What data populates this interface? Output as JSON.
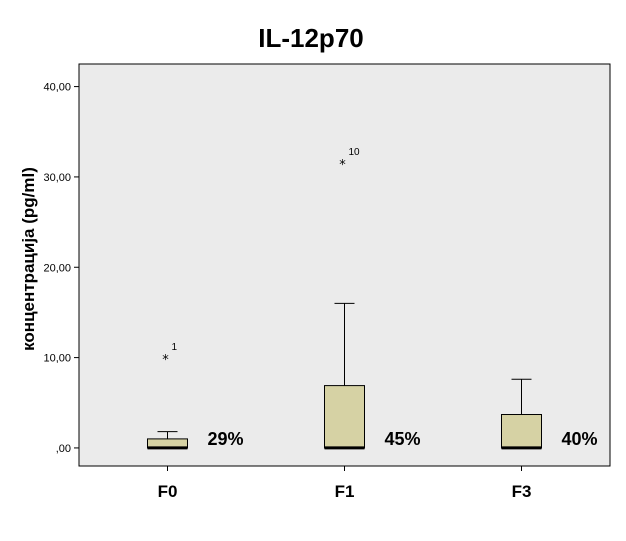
{
  "chart_data": {
    "type": "boxplot",
    "title": "IL-12p70",
    "ylabel": "концентрација (pg/ml)",
    "xlabel": "",
    "ylim": [
      -2,
      42.5
    ],
    "yticks": [
      0,
      10,
      20,
      30,
      40
    ],
    "ytick_labels": [
      ",00",
      "10,00",
      "20,00",
      "30,00",
      "40,00"
    ],
    "grid": false,
    "colors": {
      "plot_bg": "#ebebeb",
      "box_fill": "#d6d2a4",
      "stroke": "#000000"
    },
    "categories": [
      "F0",
      "F1",
      "F3"
    ],
    "boxes": [
      {
        "category": "F0",
        "min": 0,
        "q1": 0,
        "median": 0,
        "q3": 1.0,
        "max": 1.8,
        "label": "29%",
        "outliers": [
          {
            "value": 10.3,
            "id": "1"
          }
        ]
      },
      {
        "category": "F1",
        "min": 0,
        "q1": 0,
        "median": 0,
        "q3": 6.9,
        "max": 16.0,
        "label": "45%",
        "outliers": [
          {
            "value": 31.9,
            "id": "10"
          }
        ]
      },
      {
        "category": "F3",
        "min": 0,
        "q1": 0,
        "median": 0,
        "q3": 3.7,
        "max": 7.6,
        "label": "40%",
        "outliers": []
      }
    ]
  }
}
